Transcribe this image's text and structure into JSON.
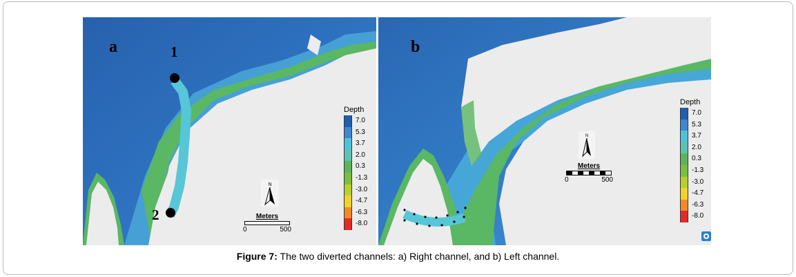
{
  "panels": [
    {
      "letter": "a",
      "markers": [
        "1",
        "2"
      ]
    },
    {
      "letter": "b"
    }
  ],
  "legend": {
    "title": "Depth",
    "entries": [
      {
        "label": "7.0",
        "color": "#1f5fae"
      },
      {
        "label": "5.3",
        "color": "#3f86cf"
      },
      {
        "label": "3.7",
        "color": "#4ec3d8"
      },
      {
        "label": "2.0",
        "color": "#5fc2b0"
      },
      {
        "label": "0.3",
        "color": "#5db55a"
      },
      {
        "label": "-1.3",
        "color": "#7cbf3d"
      },
      {
        "label": "-3.0",
        "color": "#b8cf2d"
      },
      {
        "label": "-4.7",
        "color": "#f2d22a"
      },
      {
        "label": "-6.3",
        "color": "#f08a2a"
      },
      {
        "label": "-8.0",
        "color": "#e32b26"
      }
    ]
  },
  "scale_bar": {
    "unit": "Meters",
    "min": "0",
    "max": "500"
  },
  "north_arrow": {
    "label": "N",
    "icon": "north-arrow-icon"
  },
  "caption": {
    "label": "Figure 7:",
    "text": " The two diverted channels: a) Right channel, and b) Left channel."
  },
  "colors": {
    "land": "#ececec",
    "deep": "#2a69b5",
    "mid": "#3b8ad0",
    "shallow": "#5cc0d6",
    "shore": "#57b554"
  }
}
